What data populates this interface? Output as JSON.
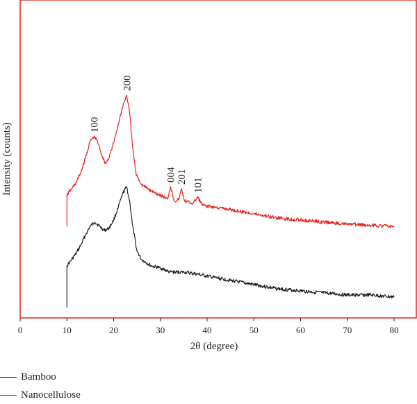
{
  "chart_data": {
    "type": "line",
    "title": "",
    "xlabel": "2θ (degree)",
    "ylabel": "Intensity (counts)",
    "xlim": [
      0,
      80
    ],
    "x_ticks": [
      0,
      10,
      20,
      30,
      40,
      50,
      60,
      70,
      80
    ],
    "y_ticks": [],
    "grid": false,
    "legend_position": "bottom-left",
    "series": [
      {
        "name": "Bamboo",
        "color": "#231f20",
        "points": [
          [
            10,
            0.05
          ],
          [
            10,
            0.25
          ],
          [
            11,
            0.28
          ],
          [
            12,
            0.31
          ],
          [
            13,
            0.35
          ],
          [
            14,
            0.4
          ],
          [
            15,
            0.44
          ],
          [
            16,
            0.46
          ],
          [
            17,
            0.44
          ],
          [
            18,
            0.42
          ],
          [
            19,
            0.43
          ],
          [
            20,
            0.47
          ],
          [
            21,
            0.53
          ],
          [
            22,
            0.6
          ],
          [
            22.8,
            0.63
          ],
          [
            23.5,
            0.55
          ],
          [
            24,
            0.45
          ],
          [
            25,
            0.32
          ],
          [
            26,
            0.28
          ],
          [
            28,
            0.25
          ],
          [
            30,
            0.24
          ],
          [
            32,
            0.22
          ],
          [
            35,
            0.22
          ],
          [
            38,
            0.21
          ],
          [
            40,
            0.2
          ],
          [
            45,
            0.18
          ],
          [
            50,
            0.16
          ],
          [
            55,
            0.14
          ],
          [
            60,
            0.13
          ],
          [
            65,
            0.12
          ],
          [
            70,
            0.11
          ],
          [
            75,
            0.11
          ],
          [
            80,
            0.1
          ]
        ]
      },
      {
        "name": "Nanocellulose",
        "color": "#e4231e",
        "points": [
          [
            10,
            0.44
          ],
          [
            10,
            0.59
          ],
          [
            11,
            0.62
          ],
          [
            12,
            0.65
          ],
          [
            13,
            0.7
          ],
          [
            14,
            0.77
          ],
          [
            15,
            0.85
          ],
          [
            15.8,
            0.87
          ],
          [
            16.5,
            0.85
          ],
          [
            17.5,
            0.78
          ],
          [
            18.3,
            0.74
          ],
          [
            19,
            0.77
          ],
          [
            20,
            0.84
          ],
          [
            21,
            0.93
          ],
          [
            22,
            1.02
          ],
          [
            22.8,
            1.07
          ],
          [
            23.5,
            0.97
          ],
          [
            24,
            0.83
          ],
          [
            24.8,
            0.69
          ],
          [
            26,
            0.64
          ],
          [
            28,
            0.61
          ],
          [
            30,
            0.59
          ],
          [
            31.5,
            0.57
          ],
          [
            32.2,
            0.63
          ],
          [
            33,
            0.56
          ],
          [
            34,
            0.57
          ],
          [
            34.5,
            0.62
          ],
          [
            35.2,
            0.56
          ],
          [
            37,
            0.55
          ],
          [
            38,
            0.58
          ],
          [
            39,
            0.54
          ],
          [
            42,
            0.53
          ],
          [
            45,
            0.52
          ],
          [
            50,
            0.5
          ],
          [
            55,
            0.48
          ],
          [
            60,
            0.47
          ],
          [
            65,
            0.46
          ],
          [
            70,
            0.45
          ],
          [
            75,
            0.445
          ],
          [
            80,
            0.44
          ]
        ]
      }
    ],
    "annotations": [
      {
        "text": "100",
        "x": 15.8,
        "y": 0.87
      },
      {
        "text": "200",
        "x": 22.8,
        "y": 1.07
      },
      {
        "text": "004",
        "x": 32.2,
        "y": 0.63
      },
      {
        "text": "201",
        "x": 34.5,
        "y": 0.62
      },
      {
        "text": "101",
        "x": 38.0,
        "y": 0.58
      }
    ]
  }
}
